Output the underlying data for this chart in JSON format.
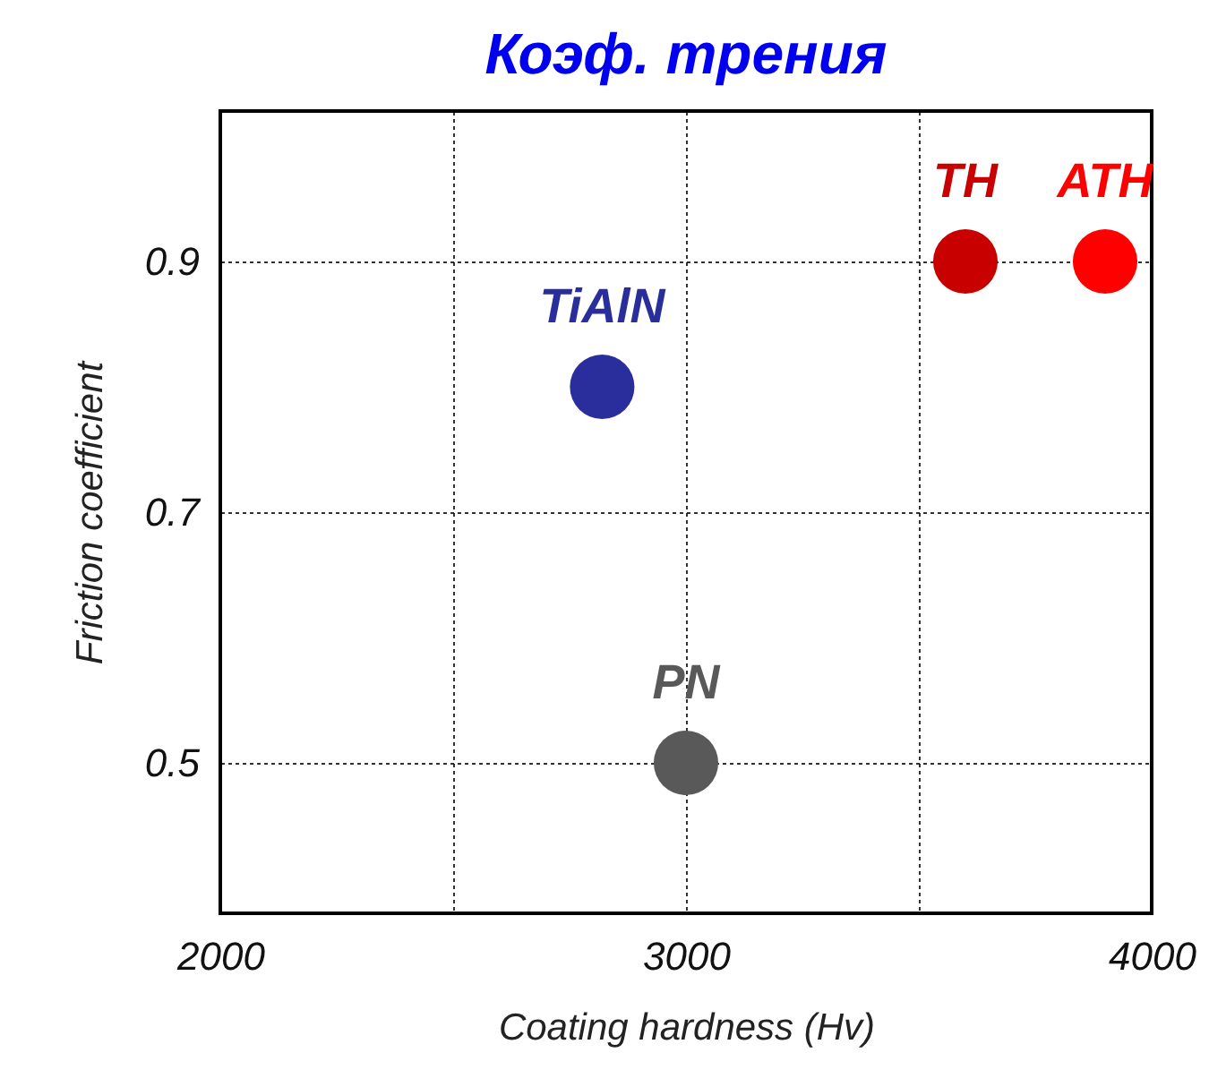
{
  "chart_data": {
    "type": "scatter",
    "title": "Коэф. трения",
    "xlabel": "Coating hardness (Hv)",
    "ylabel": "Friction coefficient",
    "xlim": [
      2000,
      4000
    ],
    "xticks": [
      2000,
      {
        "value": 2500,
        "label": null
      },
      3000,
      {
        "value": 3500,
        "label": null
      },
      4000
    ],
    "ylim": [
      0.38,
      1.02
    ],
    "yticks": [
      0.5,
      0.7,
      0.9
    ],
    "grid": true,
    "marker": "circle",
    "legend": false,
    "series": [
      {
        "name": "TiAlN",
        "color": "#2a2e9c",
        "x": [
          2820
        ],
        "values": [
          0.8
        ]
      },
      {
        "name": "PN",
        "color": "#595959",
        "x": [
          3000
        ],
        "values": [
          0.5
        ]
      },
      {
        "name": "TH",
        "color": "#c80000",
        "x": [
          3600
        ],
        "values": [
          0.9
        ]
      },
      {
        "name": "ATH",
        "color": "#ff0000",
        "x": [
          3900
        ],
        "values": [
          0.9
        ]
      }
    ]
  }
}
